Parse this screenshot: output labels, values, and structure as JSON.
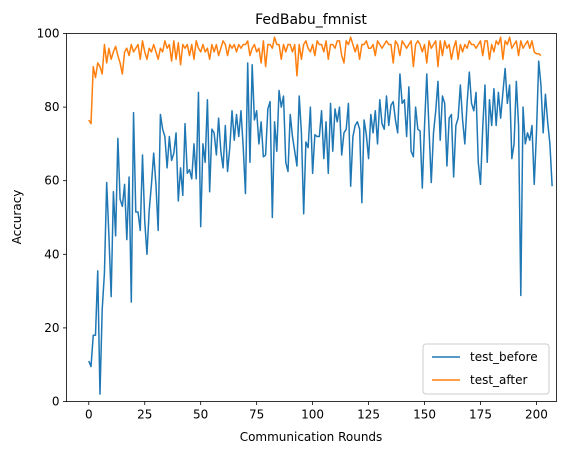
{
  "chart_data": {
    "type": "line",
    "title": "FedBabu_fmnist",
    "xlabel": "Communication Rounds",
    "ylabel": "Accuracy",
    "xlim": [
      -9.95,
      208.95
    ],
    "ylim": [
      0,
      100
    ],
    "xticks": [
      0,
      25,
      50,
      75,
      100,
      125,
      150,
      175,
      200
    ],
    "yticks": [
      0,
      20,
      40,
      60,
      80,
      100
    ],
    "grid": false,
    "legend_position": "lower-right",
    "series": [
      {
        "name": "test_before",
        "color": "#1f77b4",
        "values": [
          11,
          9.5,
          18,
          18,
          35.5,
          2,
          25,
          35,
          59.5,
          45,
          28.5,
          57,
          45,
          71.5,
          55,
          53,
          59,
          44,
          61,
          27,
          78.5,
          51.5,
          51.5,
          46.5,
          67,
          49,
          40,
          52,
          59,
          67.5,
          59,
          46.5,
          78,
          74,
          72,
          63.5,
          72,
          65.5,
          67.5,
          73,
          54.5,
          63.5,
          56,
          75.5,
          62,
          63,
          60.5,
          70,
          60.5,
          84,
          47.5,
          70,
          65,
          82,
          57,
          74,
          73,
          67,
          77,
          68,
          63.5,
          75,
          62.5,
          69,
          79,
          71,
          78,
          72,
          79,
          69,
          56.5,
          92,
          65,
          91.5,
          76.5,
          79,
          70,
          76,
          66.5,
          67,
          79.5,
          81.5,
          50,
          76,
          68,
          84.5,
          80,
          83,
          65,
          62.5,
          78,
          72,
          68,
          64,
          83,
          73,
          51,
          70.5,
          69,
          80,
          62,
          72.5,
          72,
          72,
          79,
          66,
          76,
          62,
          81,
          68,
          79.5,
          76,
          80,
          67,
          73,
          74,
          81,
          58.5,
          72,
          75,
          76,
          74,
          54,
          76.5,
          72.5,
          66,
          78,
          73,
          79,
          70,
          82,
          75.5,
          74,
          83,
          75,
          80.5,
          81.5,
          76.5,
          73,
          89,
          81,
          82,
          72,
          85.5,
          68,
          66.5,
          80,
          74,
          73.5,
          58,
          75,
          89,
          74,
          59.5,
          73,
          79,
          87,
          71,
          83,
          81,
          64,
          77,
          78,
          61,
          75,
          77,
          86,
          76.5,
          70,
          81,
          89.5,
          81,
          79,
          84,
          65,
          59,
          74.5,
          86,
          65,
          82,
          75,
          85,
          75,
          84,
          77,
          84,
          90.5,
          81,
          86,
          66,
          70,
          87,
          75,
          28.8,
          80,
          70,
          73,
          71,
          75,
          59,
          73,
          92.5,
          86,
          73,
          83.5,
          76,
          70,
          58.5
        ]
      },
      {
        "name": "test_after",
        "color": "#ff7f0e",
        "values": [
          76.5,
          75.5,
          91,
          88,
          92,
          91,
          89,
          97,
          92,
          96,
          93,
          95,
          96.5,
          94,
          92,
          89,
          95,
          96,
          94,
          97,
          95,
          96,
          97,
          93,
          98,
          95,
          93,
          96,
          95,
          97,
          95,
          93,
          96,
          95,
          98,
          96,
          97,
          92.5,
          98,
          93,
          97.5,
          91.5,
          97,
          96,
          97,
          94,
          97,
          93,
          98,
          96,
          95,
          97,
          95,
          96,
          93,
          97,
          95,
          97,
          94,
          96,
          98,
          97,
          94,
          97,
          96,
          97,
          95,
          97,
          96,
          97,
          97,
          98,
          94,
          96,
          97,
          95,
          96,
          92,
          98,
          91,
          97,
          97,
          96,
          99,
          97,
          97,
          93,
          97,
          95,
          97,
          97,
          95,
          97,
          88.5,
          97,
          93,
          97,
          98,
          96,
          95,
          97,
          94,
          98,
          97,
          97,
          95,
          98,
          93,
          97,
          97,
          96,
          98,
          98,
          94,
          92,
          98,
          97,
          99,
          97,
          95,
          97,
          93,
          97,
          97,
          98,
          96,
          96,
          97,
          94,
          98,
          97,
          96,
          97,
          98,
          97,
          97,
          92,
          98,
          97,
          94,
          98,
          97,
          96,
          97,
          98,
          91,
          97,
          98,
          97,
          95,
          97,
          92,
          98,
          96,
          97,
          98,
          91,
          98,
          94,
          98,
          96,
          97,
          93,
          96,
          98,
          93,
          97,
          95,
          97,
          96,
          98,
          97,
          97,
          96,
          97,
          98,
          94,
          98,
          98,
          93,
          97,
          95,
          98,
          97,
          99,
          93,
          98,
          97,
          99,
          96,
          97,
          98,
          94,
          98,
          96,
          97,
          98,
          96,
          98,
          95,
          94.5,
          94.5,
          94
        ]
      }
    ]
  }
}
